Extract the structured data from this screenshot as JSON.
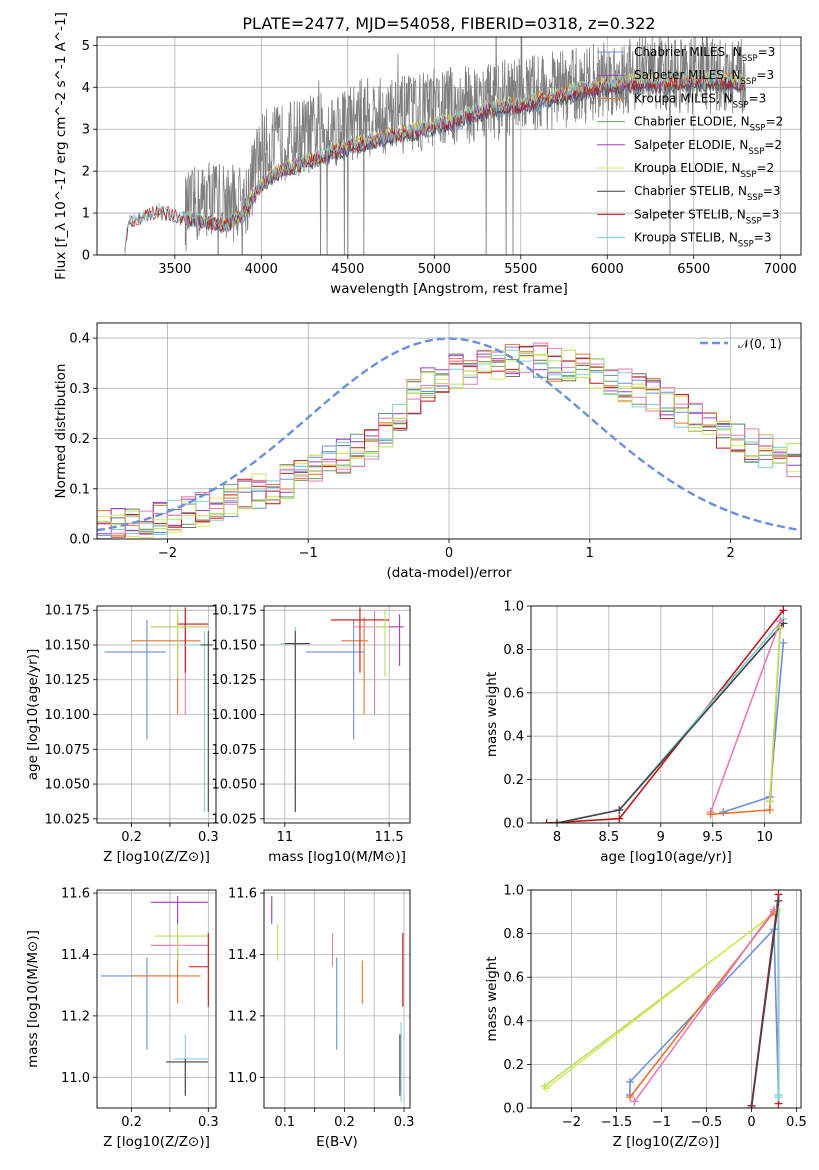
{
  "title": "PLATE=2477, MJD=54058, FIBERID=0318, z=0.322",
  "colors": {
    "chabrier": "#6b90dc",
    "salpeter": "#e8742a",
    "kroupa": "#6f6f6f",
    "chabrier_elodie": "#6a9a6a",
    "salpeter_elodie": "#a040c0",
    "kroupa_elodie": "#d8e860",
    "chabrier_stelib": "#444444",
    "salpeter_stelib": "#c01818",
    "kroupa_stelib": "#7ed0d8",
    "pink": "#e87ab8",
    "lime": "#b8e060",
    "spectrum": "#7f7f7f"
  },
  "chart_data": [
    {
      "id": "spectrum",
      "type": "line",
      "xlabel": "wavelength [Angstrom, rest frame]",
      "ylabel": "Flux [f_λ 10^-17 erg cm^-2 s^-1 A^-1]",
      "xlim": [
        3050,
        7120
      ],
      "ylim": [
        0,
        5.2
      ],
      "xticks": [
        3500,
        4000,
        4500,
        5000,
        5500,
        6000,
        6500,
        7000
      ],
      "yticks": [
        0,
        1,
        2,
        3,
        4,
        5
      ],
      "legend": [
        {
          "label": "Chabrier MILES, N",
          "sub": "SSP",
          "suffix": "=3",
          "color": "#6b90dc"
        },
        {
          "label": "Salpeter MILES, N",
          "sub": "SSP",
          "suffix": "=3",
          "color": "#a040c0"
        },
        {
          "label": "Kroupa MILES, N",
          "sub": "SSP",
          "suffix": "=3",
          "color": "#e8742a"
        },
        {
          "label": "Chabrier ELODIE, N",
          "sub": "SSP",
          "suffix": "=2",
          "color": "#6a9a6a"
        },
        {
          "label": "Salpeter ELODIE, N",
          "sub": "SSP",
          "suffix": "=2",
          "color": "#a040c0"
        },
        {
          "label": "Kroupa ELODIE, N",
          "sub": "SSP",
          "suffix": "=2",
          "color": "#d8e860"
        },
        {
          "label": "Chabrier STELIB, N",
          "sub": "SSP",
          "suffix": "=3",
          "color": "#444444"
        },
        {
          "label": "Salpeter STELIB, N",
          "sub": "SSP",
          "suffix": "=3",
          "color": "#c01818"
        },
        {
          "label": "Kroupa STELIB, N",
          "sub": "SSP",
          "suffix": "=3",
          "color": "#7ed0d8"
        }
      ],
      "model_anchor_points": {
        "x": [
          3210,
          3230,
          3400,
          3600,
          3800,
          3900,
          4000,
          4100,
          4300,
          4500,
          4700,
          4900,
          5100,
          5300,
          5500,
          5700,
          5900,
          6100,
          6300,
          6500,
          6700,
          6800
        ],
        "y": [
          0,
          0.8,
          1.05,
          0.85,
          0.7,
          1.0,
          1.7,
          2.0,
          2.3,
          2.6,
          2.8,
          3.0,
          3.2,
          3.5,
          3.6,
          3.8,
          4.0,
          4.15,
          4.1,
          4.2,
          4.15,
          4.1
        ]
      },
      "data_anchor_points": {
        "x": [
          3560,
          3700,
          3900,
          4000,
          4200,
          4400,
          4600,
          4800,
          5000,
          5200,
          5400,
          5600,
          5800,
          6000,
          6200,
          6400,
          6600,
          6800
        ],
        "y": [
          1.0,
          1.4,
          1.2,
          2.5,
          2.8,
          3.0,
          3.3,
          3.3,
          3.5,
          3.6,
          3.7,
          3.9,
          4.0,
          4.2,
          4.4,
          4.3,
          4.3,
          4.2
        ]
      }
    },
    {
      "id": "residuals",
      "type": "line",
      "xlabel": "(data-model)/error",
      "ylabel": "Normed distribution",
      "xlim": [
        -2.5,
        2.5
      ],
      "ylim": [
        0,
        0.43
      ],
      "xticks": [
        -2,
        -1,
        0,
        1,
        2
      ],
      "yticks": [
        0.0,
        0.1,
        0.2,
        0.3,
        0.4
      ],
      "gaussian_label": "𝒩(0, 1)",
      "gaussian": {
        "mean": 0,
        "sigma": 1
      },
      "histogram_anchor_points": {
        "x": [
          -2.5,
          -2.0,
          -1.5,
          -1.0,
          -0.5,
          -0.2,
          0.0,
          0.3,
          0.6,
          1.0,
          1.5,
          2.0,
          2.5
        ],
        "y": [
          0.02,
          0.04,
          0.08,
          0.13,
          0.2,
          0.3,
          0.33,
          0.35,
          0.36,
          0.33,
          0.28,
          0.2,
          0.15
        ]
      }
    },
    {
      "id": "age_vs_Z",
      "type": "scatter",
      "xlabel": "Z [log10(Z/Z⊙)]",
      "ylabel": "age  [log10(age/yr)]",
      "xlim": [
        0.155,
        0.31
      ],
      "ylim": [
        10.022,
        10.178
      ],
      "xticks": [
        0.2,
        0.25,
        0.3
      ],
      "xticklabels": [
        "0.2",
        "",
        "0.3"
      ],
      "yticks": [
        10.025,
        10.05,
        10.075,
        10.1,
        10.125,
        10.15,
        10.175
      ],
      "errorbars": [
        {
          "x": 0.22,
          "y": 10.145,
          "xerr": [
            0.165,
            0.245
          ],
          "yerr": [
            10.082,
            10.168
          ],
          "color": "#6b90dc"
        },
        {
          "x": 0.26,
          "y": 10.153,
          "xerr": [
            0.2,
            0.29
          ],
          "yerr": [
            10.1,
            10.17
          ],
          "color": "#e8742a"
        },
        {
          "x": 0.27,
          "y": 10.163,
          "xerr": [
            0.225,
            0.3
          ],
          "yerr": [
            10.1,
            10.175
          ],
          "color": "#e87ab8"
        },
        {
          "x": 0.27,
          "y": 10.165,
          "xerr": [
            0.26,
            0.3
          ],
          "yerr": [
            10.13,
            10.177
          ],
          "color": "#c01818"
        },
        {
          "x": 0.26,
          "y": 10.163,
          "xerr": [
            0.225,
            0.3
          ],
          "yerr": [
            10.127,
            10.176
          ],
          "color": "#b8e060"
        },
        {
          "x": 0.295,
          "y": 10.15,
          "xerr": [
            0.27,
            0.3
          ],
          "yerr": [
            10.03,
            10.16
          ],
          "color": "#7ed0d8"
        },
        {
          "x": 0.3,
          "y": 10.15,
          "xerr": [
            0.29,
            0.305
          ],
          "yerr": [
            10.03,
            10.16
          ],
          "color": "#444444"
        }
      ]
    },
    {
      "id": "age_vs_mass",
      "type": "scatter",
      "xlabel": "mass [log10(M/M⊙)]",
      "ylabel": "",
      "xlim": [
        10.9,
        11.6
      ],
      "ylim": [
        10.022,
        10.178
      ],
      "xticks": [
        11.0,
        11.5
      ],
      "yticks": [
        10.025,
        10.05,
        10.075,
        10.1,
        10.125,
        10.15,
        10.175
      ],
      "errorbars": [
        {
          "x": 11.33,
          "y": 10.145,
          "xerr": [
            11.1,
            11.38
          ],
          "yerr": [
            10.082,
            10.168
          ],
          "color": "#6b90dc"
        },
        {
          "x": 11.38,
          "y": 10.153,
          "xerr": [
            11.27,
            11.4
          ],
          "yerr": [
            10.1,
            10.17
          ],
          "color": "#e8742a"
        },
        {
          "x": 11.43,
          "y": 10.163,
          "xerr": [
            11.33,
            11.5
          ],
          "yerr": [
            10.1,
            10.175
          ],
          "color": "#e87ab8"
        },
        {
          "x": 11.36,
          "y": 10.168,
          "xerr": [
            11.22,
            11.5
          ],
          "yerr": [
            10.13,
            10.177
          ],
          "color": "#c01818"
        },
        {
          "x": 11.48,
          "y": 10.163,
          "xerr": [
            11.42,
            11.5
          ],
          "yerr": [
            10.127,
            10.176
          ],
          "color": "#b8e060"
        },
        {
          "x": 11.55,
          "y": 10.163,
          "xerr": [
            11.5,
            11.57
          ],
          "yerr": [
            10.135,
            10.172
          ],
          "color": "#a040c0"
        },
        {
          "x": 11.05,
          "y": 10.151,
          "xerr": [
            10.98,
            11.1
          ],
          "yerr": [
            10.03,
            10.163
          ],
          "color": "#7ed0d8"
        },
        {
          "x": 11.05,
          "y": 10.151,
          "xerr": [
            11.0,
            11.12
          ],
          "yerr": [
            10.03,
            10.16
          ],
          "color": "#444444"
        }
      ]
    },
    {
      "id": "massweight_vs_age",
      "type": "line",
      "xlabel": "age  [log10(age/yr)]",
      "ylabel": "mass weight",
      "xlim": [
        7.75,
        10.35
      ],
      "ylim": [
        0,
        1
      ],
      "xticks": [
        8.0,
        8.5,
        9.0,
        9.5,
        10.0
      ],
      "yticks": [
        0.0,
        0.2,
        0.4,
        0.6,
        0.8,
        1.0
      ],
      "series": [
        {
          "color": "#c01818",
          "x": [
            7.9,
            8.6,
            10.18
          ],
          "y": [
            0.0,
            0.02,
            0.98
          ]
        },
        {
          "color": "#7ed0d8",
          "x": [
            8.0,
            8.6,
            10.18
          ],
          "y": [
            0.0,
            0.06,
            0.94
          ]
        },
        {
          "color": "#444444",
          "x": [
            8.0,
            8.6,
            10.18
          ],
          "y": [
            0.0,
            0.06,
            0.92
          ]
        },
        {
          "color": "#6b90dc",
          "x": [
            9.6,
            10.05,
            10.18
          ],
          "y": [
            0.05,
            0.12,
            0.83
          ]
        },
        {
          "color": "#e87ab8",
          "x": [
            9.48,
            10.15
          ],
          "y": [
            0.05,
            0.93
          ]
        },
        {
          "color": "#e8742a",
          "x": [
            9.48,
            10.05,
            10.15
          ],
          "y": [
            0.04,
            0.06,
            0.9
          ]
        },
        {
          "color": "#b8e060",
          "x": [
            10.05,
            10.15
          ],
          "y": [
            0.1,
            0.9
          ]
        }
      ]
    },
    {
      "id": "mass_vs_Z",
      "type": "scatter",
      "xlabel": "Z [log10(Z/Z⊙)]",
      "ylabel": "mass [log10(M/M⊙)]",
      "xlim": [
        0.155,
        0.31
      ],
      "ylim": [
        10.9,
        11.61
      ],
      "xticks": [
        0.2,
        0.25,
        0.3
      ],
      "xticklabels": [
        "0.2",
        "",
        "0.3"
      ],
      "yticks": [
        11.0,
        11.2,
        11.4,
        11.6
      ],
      "errorbars": [
        {
          "x": 0.22,
          "y": 11.33,
          "xerr": [
            0.16,
            0.245
          ],
          "yerr": [
            11.09,
            11.39
          ],
          "color": "#6b90dc"
        },
        {
          "x": 0.26,
          "y": 11.33,
          "xerr": [
            0.2,
            0.29
          ],
          "yerr": [
            11.24,
            11.42
          ],
          "color": "#e8742a"
        },
        {
          "x": 0.26,
          "y": 11.43,
          "xerr": [
            0.225,
            0.3
          ],
          "yerr": [
            11.38,
            11.47
          ],
          "color": "#e87ab8"
        },
        {
          "x": 0.26,
          "y": 11.46,
          "xerr": [
            0.23,
            0.3
          ],
          "yerr": [
            11.38,
            11.52
          ],
          "color": "#b8e060"
        },
        {
          "x": 0.26,
          "y": 11.57,
          "xerr": [
            0.225,
            0.3
          ],
          "yerr": [
            11.5,
            11.59
          ],
          "color": "#a040c0"
        },
        {
          "x": 0.3,
          "y": 11.36,
          "xerr": [
            0.275,
            0.3
          ],
          "yerr": [
            11.23,
            11.47
          ],
          "color": "#c01818"
        },
        {
          "x": 0.27,
          "y": 11.06,
          "xerr": [
            0.255,
            0.3
          ],
          "yerr": [
            10.94,
            11.14
          ],
          "color": "#7ed0d8"
        },
        {
          "x": 0.27,
          "y": 11.05,
          "xerr": [
            0.245,
            0.3
          ],
          "yerr": [
            10.94,
            11.06
          ],
          "color": "#444444"
        }
      ]
    },
    {
      "id": "mass_vs_ebv",
      "type": "scatter",
      "xlabel": "E(B-V)",
      "ylabel": "",
      "xlim": [
        0.065,
        0.31
      ],
      "ylim": [
        10.9,
        11.61
      ],
      "xticks": [
        0.1,
        0.15,
        0.2,
        0.25,
        0.3
      ],
      "xticklabels": [
        "0.1",
        "",
        "0.2",
        "",
        "0.3"
      ],
      "yticks": [
        11.0,
        11.2,
        11.4,
        11.6
      ],
      "errorbars": [
        {
          "x": 0.078,
          "y": 11.57,
          "yerr": [
            11.5,
            11.59
          ],
          "color": "#a040c0"
        },
        {
          "x": 0.088,
          "y": 11.46,
          "yerr": [
            11.38,
            11.5
          ],
          "color": "#b8e060"
        },
        {
          "x": 0.18,
          "y": 11.43,
          "yerr": [
            11.36,
            11.47
          ],
          "color": "#e87ab8"
        },
        {
          "x": 0.187,
          "y": 11.23,
          "yerr": [
            11.09,
            11.39
          ],
          "color": "#6b90dc"
        },
        {
          "x": 0.23,
          "y": 11.3,
          "yerr": [
            11.24,
            11.38
          ],
          "color": "#e8742a"
        },
        {
          "x": 0.298,
          "y": 11.36,
          "yerr": [
            11.23,
            11.47
          ],
          "color": "#c01818"
        },
        {
          "x": 0.295,
          "y": 11.05,
          "yerr": [
            10.92,
            11.18
          ],
          "color": "#7ed0d8"
        },
        {
          "x": 0.293,
          "y": 11.05,
          "yerr": [
            10.94,
            11.14
          ],
          "color": "#444444"
        }
      ]
    },
    {
      "id": "massweight_vs_Z",
      "type": "line",
      "xlabel": "Z [log10(Z/Z⊙)]",
      "ylabel": "mass weight",
      "xlim": [
        -2.45,
        0.55
      ],
      "ylim": [
        0,
        1
      ],
      "xticks": [
        -2.0,
        -1.5,
        -1.0,
        -0.5,
        0.0,
        0.5
      ],
      "yticks": [
        0.0,
        0.2,
        0.4,
        0.6,
        0.8,
        1.0
      ],
      "series": [
        {
          "color": "#c01818",
          "x": [
            0.0,
            0.3,
            0.3
          ],
          "y": [
            0.01,
            0.98,
            0.02
          ]
        },
        {
          "color": "#b8e060",
          "x": [
            -2.3,
            0.28
          ],
          "y": [
            0.1,
            0.9
          ]
        },
        {
          "color": "#d8e860",
          "x": [
            -2.28,
            0.3
          ],
          "y": [
            0.09,
            0.91
          ]
        },
        {
          "color": "#6b90dc",
          "x": [
            -1.35,
            -1.35,
            0.25,
            0.3
          ],
          "y": [
            0.06,
            0.12,
            0.82,
            0.05
          ]
        },
        {
          "color": "#e8742a",
          "x": [
            -1.35,
            0.25
          ],
          "y": [
            0.05,
            0.9
          ]
        },
        {
          "color": "#e87ab8",
          "x": [
            -1.3,
            0.25
          ],
          "y": [
            0.03,
            0.91
          ]
        },
        {
          "color": "#7ed0d8",
          "x": [
            0.3,
            0.3,
            0.3
          ],
          "y": [
            0.05,
            0.95,
            0.06
          ]
        },
        {
          "color": "#444444",
          "x": [
            0.0,
            0.3
          ],
          "y": [
            0.0,
            0.95
          ]
        }
      ]
    }
  ]
}
